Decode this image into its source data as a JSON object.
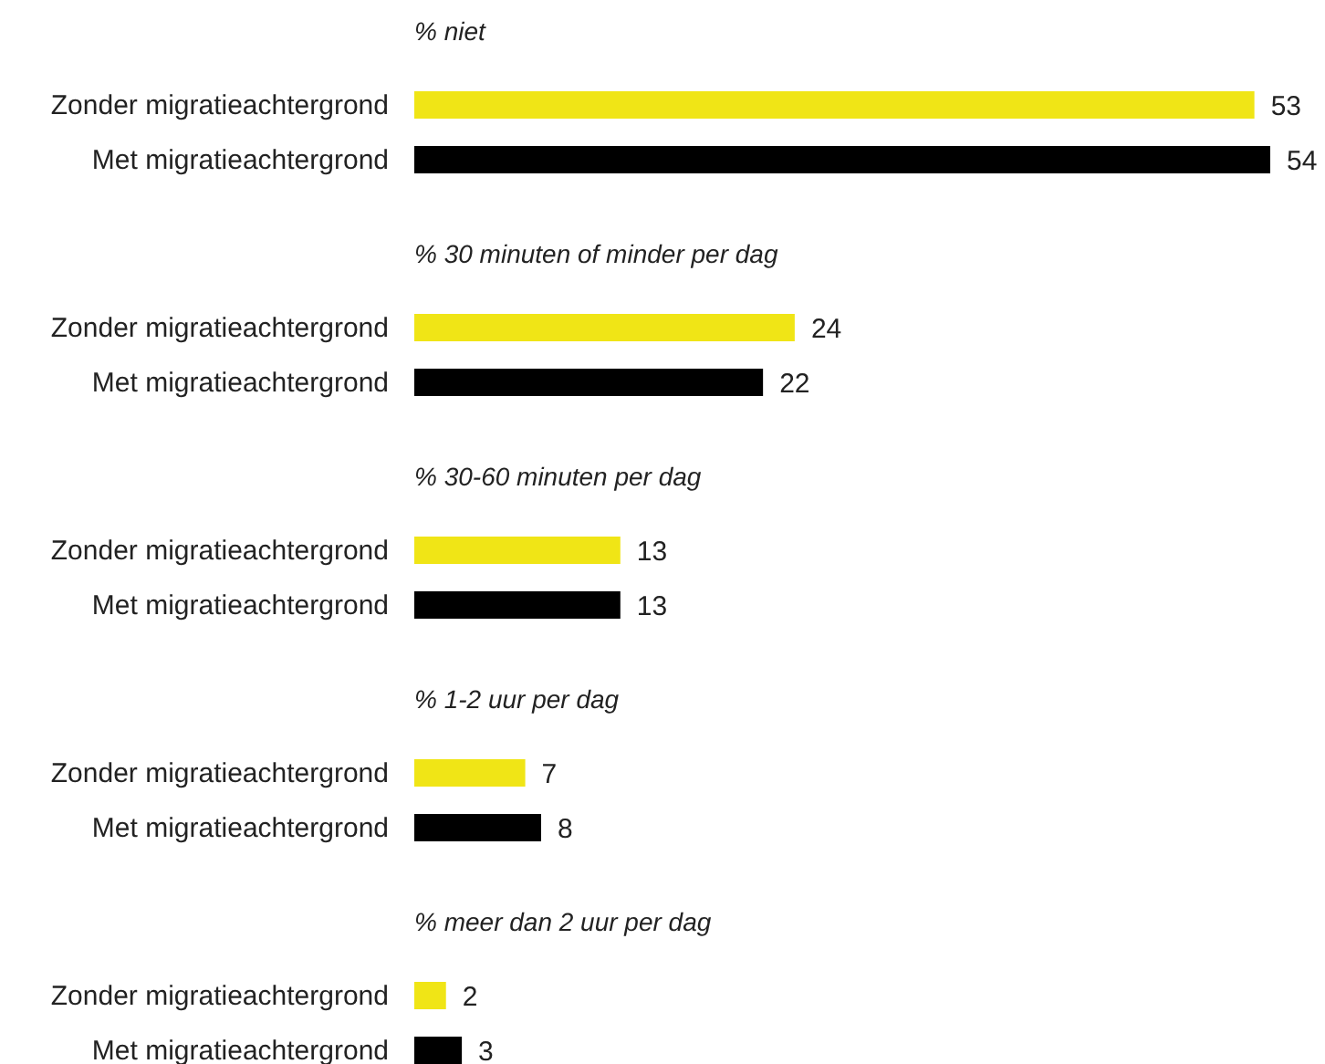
{
  "chart_data": [
    {
      "type": "bar",
      "orientation": "horizontal",
      "title": "% niet",
      "categories": [
        "Zonder migratieachtergrond",
        "Met migratieachtergrond"
      ],
      "values": [
        53,
        54
      ],
      "colors": [
        "#f0e516",
        "#000000"
      ],
      "data_labels": true
    },
    {
      "type": "bar",
      "orientation": "horizontal",
      "title": "% 30 minuten of minder per dag",
      "categories": [
        "Zonder migratieachtergrond",
        "Met migratieachtergrond"
      ],
      "values": [
        24,
        22
      ],
      "colors": [
        "#f0e516",
        "#000000"
      ],
      "data_labels": true
    },
    {
      "type": "bar",
      "orientation": "horizontal",
      "title": "% 30-60 minuten per dag",
      "categories": [
        "Zonder migratieachtergrond",
        "Met migratieachtergrond"
      ],
      "values": [
        13,
        13
      ],
      "colors": [
        "#f0e516",
        "#000000"
      ],
      "data_labels": true
    },
    {
      "type": "bar",
      "orientation": "horizontal",
      "title": "% 1-2 uur per dag",
      "categories": [
        "Zonder migratieachtergrond",
        "Met migratieachtergrond"
      ],
      "values": [
        7,
        8
      ],
      "colors": [
        "#f0e516",
        "#000000"
      ],
      "data_labels": true
    },
    {
      "type": "bar",
      "orientation": "horizontal",
      "title": "% meer dan 2 uur per dag",
      "categories": [
        "Zonder migratieachtergrond",
        "Met migratieachtergrond"
      ],
      "values": [
        2,
        3
      ],
      "colors": [
        "#f0e516",
        "#000000"
      ],
      "data_labels": true
    }
  ]
}
